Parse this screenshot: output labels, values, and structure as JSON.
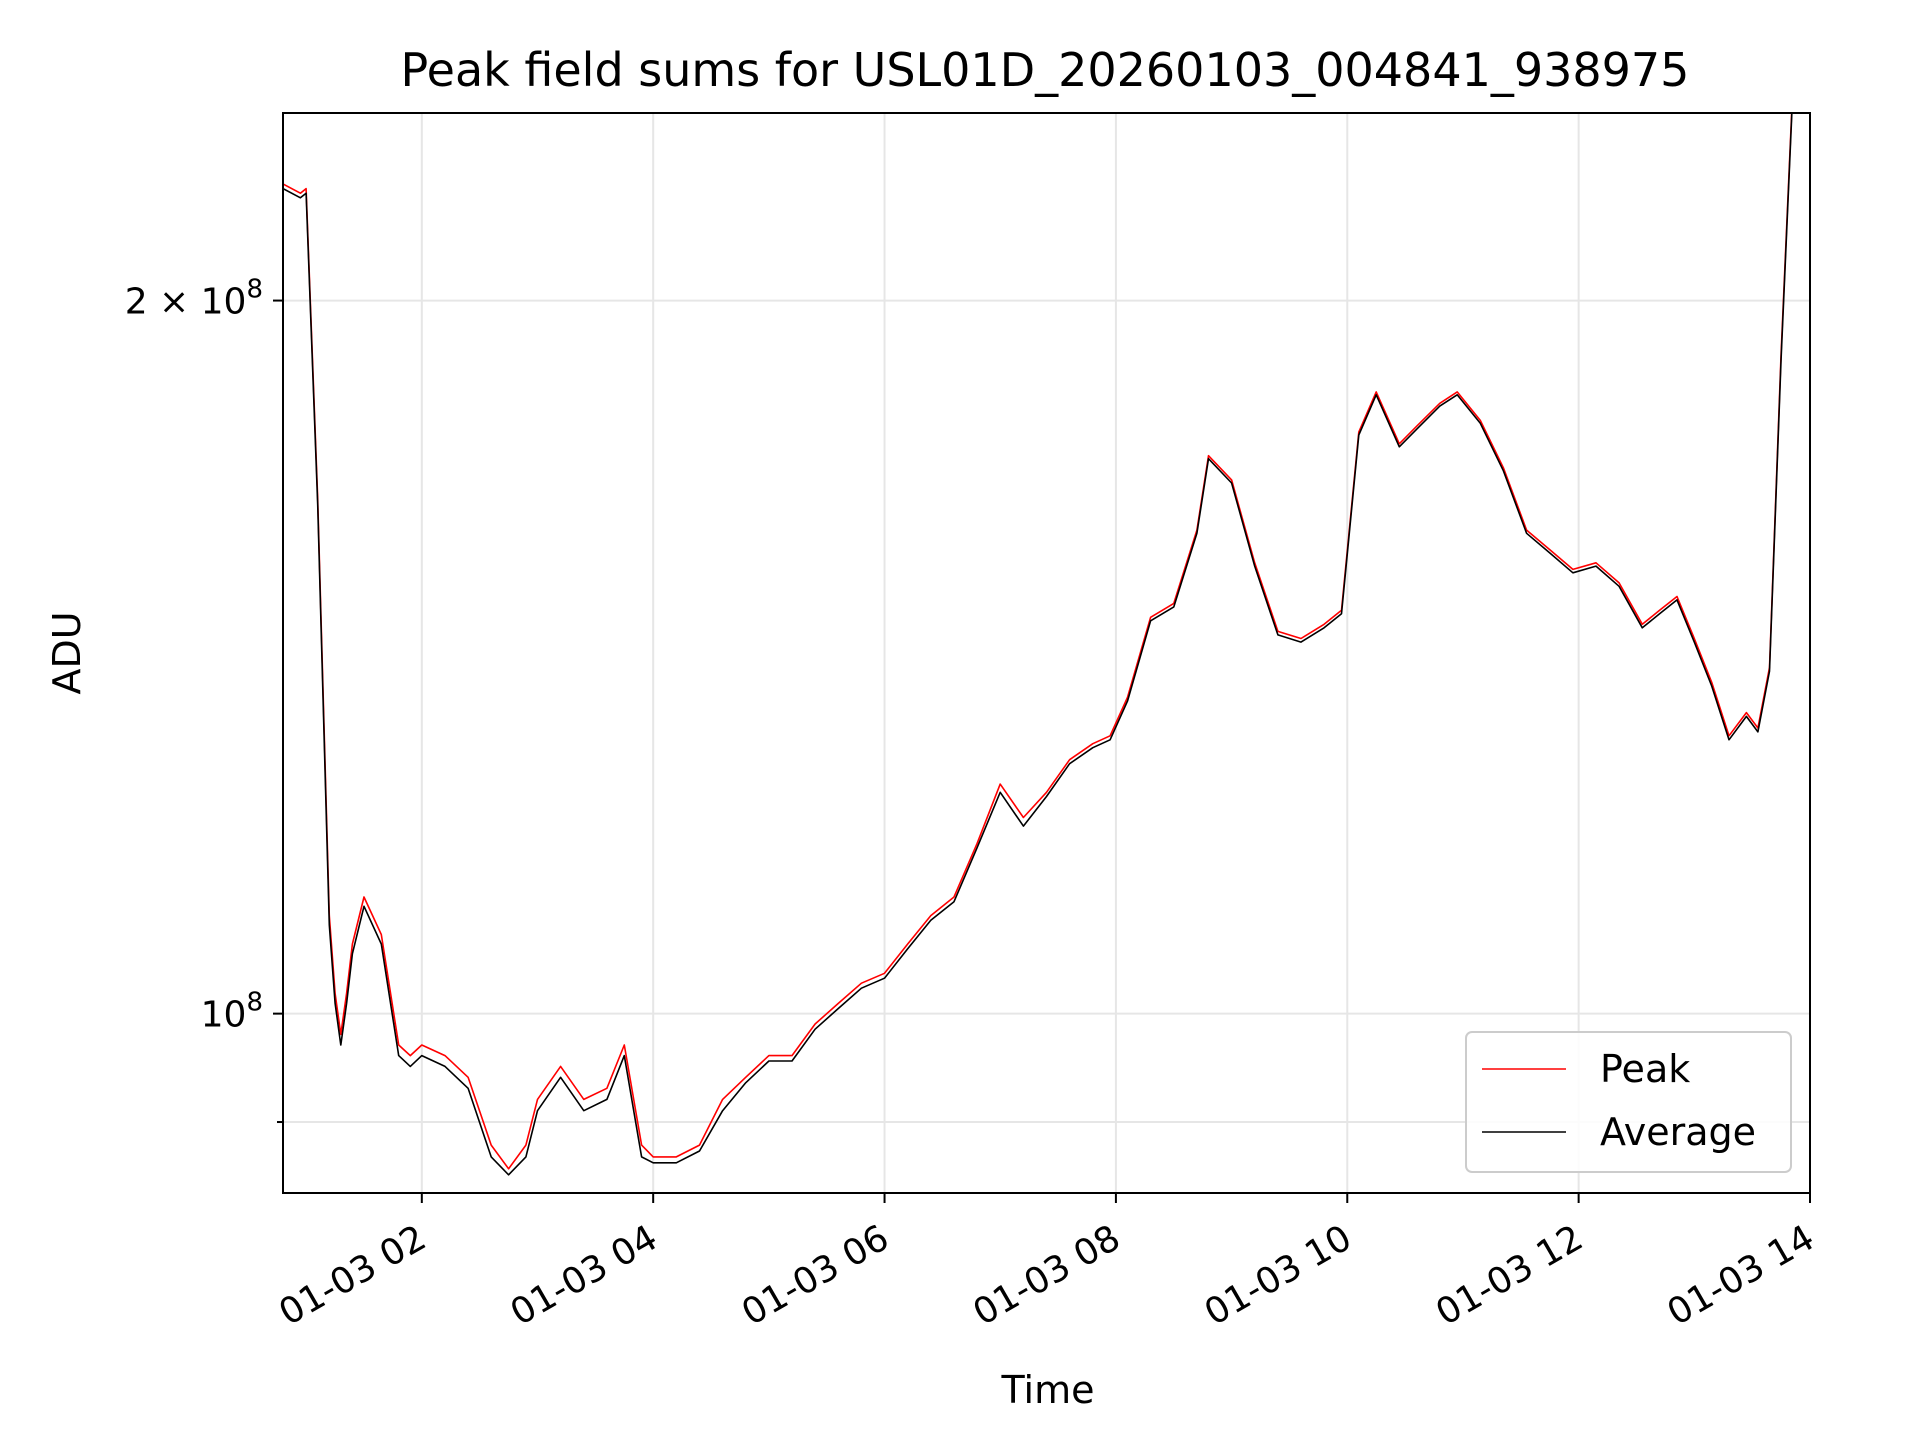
{
  "chart_data": {
    "type": "line",
    "title": "Peak field sums for USL01D_20260103_004841_938975",
    "xlabel": "Time",
    "ylabel": "ADU",
    "yscale": "log",
    "xlim_hours": [
      0.8,
      14.0
    ],
    "ylim": [
      84000000,
      240000000
    ],
    "grid": true,
    "legend_position": "lower-right",
    "x_ticks": [
      {
        "hour": 2,
        "label": "01-03 02"
      },
      {
        "hour": 4,
        "label": "01-03 04"
      },
      {
        "hour": 6,
        "label": "01-03 06"
      },
      {
        "hour": 8,
        "label": "01-03 08"
      },
      {
        "hour": 10,
        "label": "01-03 10"
      },
      {
        "hour": 12,
        "label": "01-03 12"
      },
      {
        "hour": 14,
        "label": "01-03 14"
      }
    ],
    "y_ticks": [
      {
        "value": 100000000,
        "base": "10",
        "exp": "8",
        "prefix": ""
      },
      {
        "value": 200000000,
        "base": "10",
        "exp": "8",
        "prefix": "2 × "
      }
    ],
    "y_minor_ticks": [
      90000000
    ],
    "x_hours": [
      0.8,
      0.95,
      1.0,
      1.1,
      1.2,
      1.25,
      1.3,
      1.35,
      1.4,
      1.5,
      1.65,
      1.8,
      1.9,
      2.0,
      2.2,
      2.4,
      2.6,
      2.75,
      2.9,
      3.0,
      3.2,
      3.4,
      3.6,
      3.75,
      3.9,
      4.0,
      4.2,
      4.4,
      4.6,
      4.8,
      5.0,
      5.2,
      5.4,
      5.6,
      5.8,
      6.0,
      6.2,
      6.4,
      6.6,
      6.8,
      7.0,
      7.2,
      7.4,
      7.6,
      7.8,
      7.95,
      8.1,
      8.3,
      8.5,
      8.7,
      8.8,
      9.0,
      9.2,
      9.4,
      9.6,
      9.8,
      9.95,
      10.1,
      10.25,
      10.45,
      10.6,
      10.8,
      10.95,
      11.15,
      11.35,
      11.55,
      11.75,
      11.95,
      12.15,
      12.35,
      12.55,
      12.7,
      12.85,
      13.0,
      13.15,
      13.3,
      13.45,
      13.55,
      13.65,
      13.75,
      13.85
    ],
    "series": [
      {
        "name": "Peak",
        "color": "#ff0000",
        "values": [
          224000000,
          222000000,
          223000000,
          165000000,
          110000000,
          102000000,
          98000000,
          102000000,
          107000000,
          112000000,
          108000000,
          97000000,
          96000000,
          97000000,
          96000000,
          94000000,
          88000000,
          86000000,
          88000000,
          92000000,
          95000000,
          92000000,
          93000000,
          97000000,
          88000000,
          87000000,
          87000000,
          88000000,
          92000000,
          94000000,
          96000000,
          96000000,
          99000000,
          101000000,
          103000000,
          104000000,
          107000000,
          110000000,
          112000000,
          118000000,
          125000000,
          121000000,
          124000000,
          128000000,
          130000000,
          131000000,
          136000000,
          147000000,
          149000000,
          160000000,
          172000000,
          168000000,
          155000000,
          145000000,
          144000000,
          146000000,
          148000000,
          176000000,
          183000000,
          174000000,
          177000000,
          181000000,
          183000000,
          178000000,
          170000000,
          160000000,
          157000000,
          154000000,
          155000000,
          152000000,
          146000000,
          148000000,
          150000000,
          144000000,
          138000000,
          131000000,
          134000000,
          132000000,
          140000000,
          190000000,
          245000000
        ]
      },
      {
        "name": "Average",
        "color": "#000000",
        "values": [
          223000000,
          221000000,
          222000000,
          164000000,
          109000000,
          101000000,
          97000000,
          101000000,
          106000000,
          111000000,
          107000000,
          96000000,
          95000000,
          96000000,
          95000000,
          93000000,
          87000000,
          85500000,
          87000000,
          91000000,
          94000000,
          91000000,
          92000000,
          96000000,
          87000000,
          86500000,
          86500000,
          87500000,
          91000000,
          93500000,
          95500000,
          95500000,
          98500000,
          100500000,
          102500000,
          103500000,
          106500000,
          109500000,
          111500000,
          117500000,
          124000000,
          120000000,
          123500000,
          127500000,
          129500000,
          130500000,
          135500000,
          146500000,
          148500000,
          159500000,
          171500000,
          167500000,
          154500000,
          144500000,
          143500000,
          145500000,
          147500000,
          175500000,
          182500000,
          173500000,
          176500000,
          180500000,
          182500000,
          177500000,
          169500000,
          159500000,
          156500000,
          153500000,
          154500000,
          151500000,
          145500000,
          147500000,
          149500000,
          143500000,
          137500000,
          130500000,
          133500000,
          131500000,
          139500000,
          189000000,
          244000000
        ]
      }
    ]
  }
}
